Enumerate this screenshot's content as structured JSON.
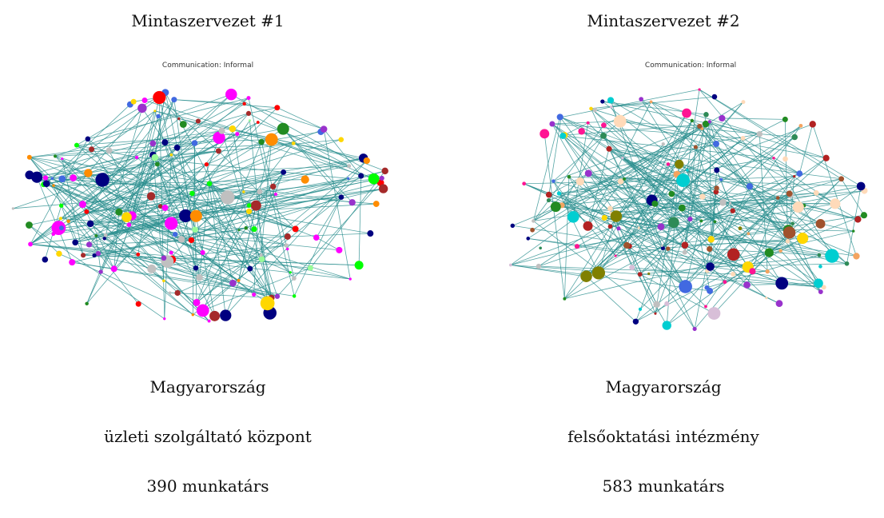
{
  "panels": [
    {
      "heading": "Mintaszervezet #1",
      "plot_title": "Communication: Informal",
      "country": "Magyarország",
      "kind": "üzleti szolgáltató központ",
      "staff": "390 munkatárs"
    },
    {
      "heading": "Mintaszervezet #2",
      "plot_title": "Communication: Informal",
      "country": "Magyarország",
      "kind": "felsőoktatási intézmény",
      "staff": "583 munkatárs"
    }
  ]
}
